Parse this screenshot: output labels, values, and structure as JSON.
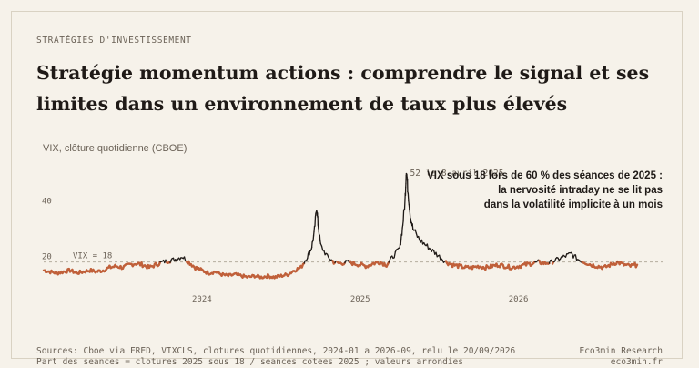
{
  "eyebrow": "STRATÉGIES D'INVESTISSEMENT",
  "title": "Stratégie momentum actions : comprendre le signal et ses limites dans un environnement de taux plus élevés",
  "annotation": {
    "line1": "VIX sous 18 lors de 60 % des séances de 2025 :",
    "line2": "la nervosité intraday ne se lit pas",
    "line3": "dans la volatilité implicite à un mois"
  },
  "footer": {
    "left1": "Sources: Cboe via FRED, VIXCLS, clotures quotidiennes, 2024-01 a 2026-09, relu le 20/09/2026",
    "left2": "Part des seances = clotures 2025 sous 18 / seances cotees 2025 ; valeurs arrondies",
    "right1": "Eco3min Research",
    "right2": "eco3min.fr"
  },
  "colors": {
    "above": "#1f1a17",
    "below": "#c0603a",
    "reference": "#b5ad9f"
  },
  "chart_data": {
    "type": "line",
    "ylabel": "VIX, clôture quotidienne (CBOE)",
    "ylim": [
      10,
      56
    ],
    "y_ticks": [
      20,
      40
    ],
    "x_ticks": [
      {
        "label": "2024",
        "month": 12
      },
      {
        "label": "2025",
        "month": 24
      },
      {
        "label": "2026",
        "month": 36
      }
    ],
    "reference_line": {
      "value": 18,
      "label": "VIX = 18"
    },
    "peak_annotation": {
      "label": "52 le 8 avril 2025",
      "month": 27.3,
      "value": 52
    },
    "x_domain": [
      0,
      45
    ],
    "series": [
      {
        "points": [
          [
            0.0,
            15
          ],
          [
            0.5,
            14.5
          ],
          [
            1.0,
            14
          ],
          [
            1.5,
            14.5
          ],
          [
            2.0,
            15
          ],
          [
            2.5,
            14
          ],
          [
            3.0,
            14.5
          ],
          [
            3.5,
            15
          ],
          [
            4.0,
            14.5
          ],
          [
            4.5,
            15
          ],
          [
            5.0,
            16
          ],
          [
            5.5,
            16.5
          ],
          [
            6.0,
            16
          ],
          [
            6.5,
            17
          ],
          [
            7.0,
            17.5
          ],
          [
            7.5,
            17
          ],
          [
            8.0,
            16
          ],
          [
            8.5,
            17
          ],
          [
            9.0,
            18
          ],
          [
            9.5,
            18.5
          ],
          [
            10.0,
            19
          ],
          [
            10.5,
            20
          ],
          [
            11.0,
            18
          ],
          [
            11.5,
            16
          ],
          [
            12.0,
            15
          ],
          [
            12.5,
            14
          ],
          [
            13.0,
            14.5
          ],
          [
            13.5,
            13.5
          ],
          [
            14.0,
            13
          ],
          [
            14.5,
            13.5
          ],
          [
            15.0,
            13
          ],
          [
            15.5,
            12.5
          ],
          [
            16.0,
            13
          ],
          [
            16.5,
            12.5
          ],
          [
            17.0,
            13
          ],
          [
            17.5,
            12.5
          ],
          [
            18.0,
            13
          ],
          [
            18.5,
            13.5
          ],
          [
            19.0,
            15
          ],
          [
            19.5,
            16
          ],
          [
            20.0,
            20
          ],
          [
            20.3,
            23
          ],
          [
            20.5,
            28
          ],
          [
            20.7,
            38
          ],
          [
            20.8,
            32
          ],
          [
            21.0,
            24
          ],
          [
            21.5,
            20
          ],
          [
            22.0,
            18
          ],
          [
            22.5,
            17.5
          ],
          [
            23.0,
            18
          ],
          [
            23.5,
            17.5
          ],
          [
            24.0,
            17
          ],
          [
            24.5,
            16.5
          ],
          [
            25.0,
            17.5
          ],
          [
            25.5,
            18
          ],
          [
            26.0,
            17
          ],
          [
            26.5,
            20
          ],
          [
            27.0,
            23
          ],
          [
            27.2,
            30
          ],
          [
            27.4,
            40
          ],
          [
            27.5,
            52
          ],
          [
            27.6,
            45
          ],
          [
            27.8,
            35
          ],
          [
            28.0,
            30
          ],
          [
            28.5,
            26
          ],
          [
            29.0,
            24
          ],
          [
            29.5,
            22
          ],
          [
            30.0,
            20
          ],
          [
            30.5,
            18
          ],
          [
            31.0,
            17
          ],
          [
            31.5,
            16.5
          ],
          [
            32.0,
            16
          ],
          [
            32.5,
            16
          ],
          [
            33.0,
            16.5
          ],
          [
            33.5,
            16
          ],
          [
            34.0,
            16.5
          ],
          [
            34.5,
            17
          ],
          [
            35.0,
            16.5
          ],
          [
            35.5,
            16
          ],
          [
            36.0,
            16.5
          ],
          [
            36.5,
            17
          ],
          [
            37.0,
            17.5
          ],
          [
            37.5,
            18
          ],
          [
            38.0,
            17.5
          ],
          [
            38.5,
            18
          ],
          [
            39.0,
            19
          ],
          [
            39.5,
            20
          ],
          [
            40.0,
            21
          ],
          [
            40.5,
            19
          ],
          [
            41.0,
            18
          ],
          [
            41.5,
            17
          ],
          [
            42.0,
            16.5
          ],
          [
            42.5,
            16
          ],
          [
            43.0,
            17
          ],
          [
            43.5,
            18
          ],
          [
            44.0,
            17
          ],
          [
            44.5,
            16.5
          ],
          [
            45.0,
            17
          ]
        ]
      }
    ]
  }
}
